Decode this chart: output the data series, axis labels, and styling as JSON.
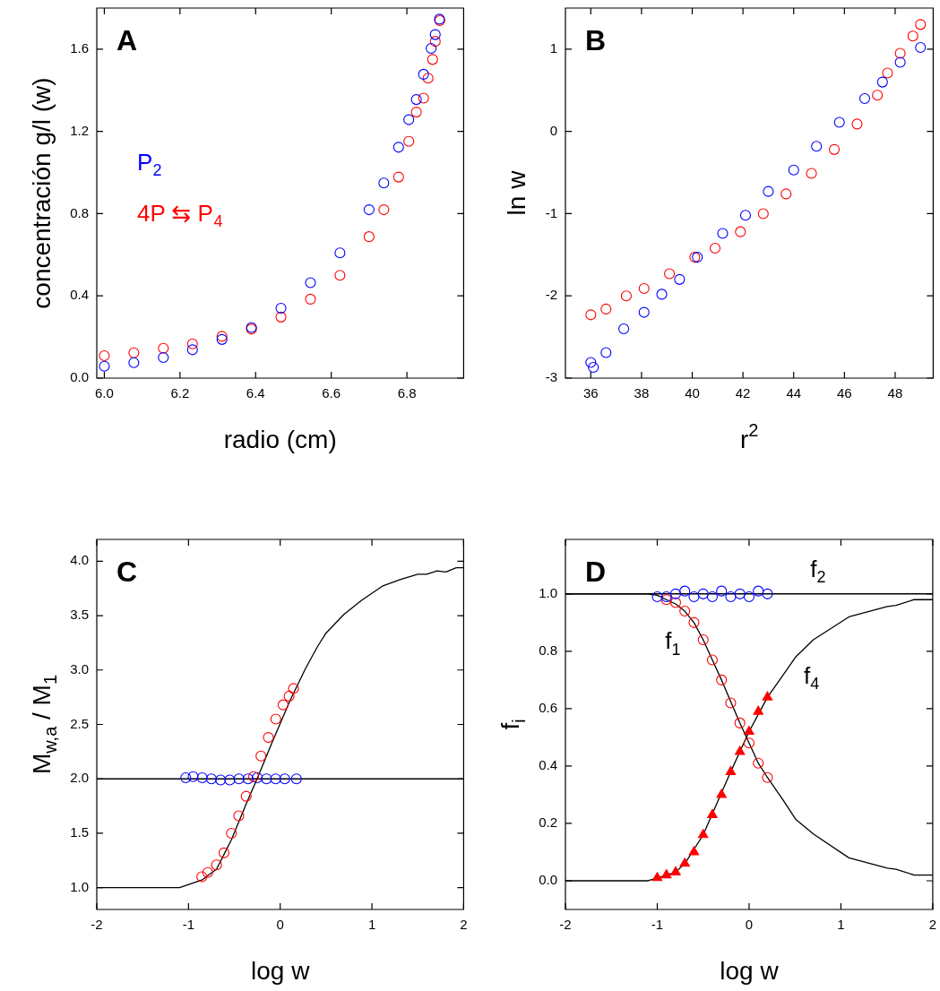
{
  "chart_data": [
    {
      "type": "scatter",
      "xlabel": "radio (cm)",
      "ylabel": "concentración g/l (w)",
      "annotations": [
        "A"
      ],
      "xlim": [
        5.98,
        6.95
      ],
      "xticks": [
        {
          "value": 6,
          "label": "6.0"
        },
        6.2,
        6.4,
        6.6,
        6.8
      ],
      "ylim": [
        0,
        1.8
      ],
      "yticks": [
        {
          "value": 0,
          "label": "0.0"
        },
        0.4,
        0.8,
        1.2,
        1.6
      ],
      "legend": "left",
      "marker": "circle",
      "series": [
        {
          "name": "P$_{2}$",
          "color": "#0000ff",
          "x": [
            6.0,
            6.078,
            6.156,
            6.233,
            6.311,
            6.389,
            6.467,
            6.545,
            6.623,
            6.7,
            6.739,
            6.778,
            6.805,
            6.825,
            6.844,
            6.864,
            6.875,
            6.886
          ],
          "values": [
            0.058,
            0.075,
            0.1,
            0.138,
            0.188,
            0.246,
            0.34,
            0.464,
            0.609,
            0.819,
            0.949,
            1.123,
            1.257,
            1.355,
            1.478,
            1.604,
            1.671,
            1.746
          ]
        },
        {
          "name": "4P ⇆ P$_{4}$",
          "color": "#ff0000",
          "x": [
            6.0,
            6.078,
            6.156,
            6.233,
            6.311,
            6.389,
            6.467,
            6.545,
            6.623,
            6.7,
            6.739,
            6.778,
            6.805,
            6.825,
            6.844,
            6.856,
            6.868,
            6.875,
            6.887
          ],
          "values": [
            0.109,
            0.123,
            0.145,
            0.167,
            0.203,
            0.239,
            0.297,
            0.384,
            0.5,
            0.688,
            0.819,
            0.978,
            1.152,
            1.294,
            1.362,
            1.459,
            1.55,
            1.638,
            1.739
          ]
        }
      ]
    },
    {
      "type": "scatter",
      "xlabel": "r$^{2}$",
      "ylabel": "ln w",
      "annotations": [
        "B"
      ],
      "xlim": [
        35,
        49.5
      ],
      "xticks": [
        36,
        38,
        40,
        42,
        44,
        46,
        48
      ],
      "ylim": [
        -3,
        1.5
      ],
      "yticks": [
        -3,
        -2,
        -1,
        0,
        1
      ],
      "marker": "circle",
      "series": [
        {
          "color": "#0000ff",
          "x": [
            36.0,
            36.1,
            36.6,
            37.3,
            38.1,
            38.8,
            39.5,
            40.2,
            41.2,
            42.1,
            43.0,
            44.0,
            44.9,
            45.8,
            46.8,
            47.5,
            48.2,
            49.0
          ],
          "values": [
            -2.81,
            -2.87,
            -2.69,
            -2.4,
            -2.2,
            -1.98,
            -1.8,
            -1.53,
            -1.24,
            -1.02,
            -0.73,
            -0.47,
            -0.18,
            0.11,
            0.4,
            0.6,
            0.84,
            1.02
          ]
        },
        {
          "color": "#ff0000",
          "x": [
            36.0,
            36.6,
            37.4,
            38.1,
            39.1,
            40.1,
            40.9,
            41.9,
            42.8,
            43.7,
            44.7,
            45.6,
            46.5,
            47.3,
            47.7,
            48.2,
            48.7,
            49.0
          ],
          "values": [
            -2.23,
            -2.16,
            -2.0,
            -1.91,
            -1.73,
            -1.53,
            -1.42,
            -1.22,
            -1.0,
            -0.76,
            -0.51,
            -0.22,
            0.09,
            0.44,
            0.71,
            0.95,
            1.16,
            1.3
          ]
        }
      ]
    },
    {
      "type": "scatter",
      "xlabel": "log w",
      "ylabel": "M$_{w,a}$ / M$_{1}$",
      "annotations": [
        "C"
      ],
      "xlim": [
        -2,
        2
      ],
      "xticks": [
        -2,
        -1,
        0,
        1,
        2
      ],
      "ylim": [
        0.8,
        4.2
      ],
      "yticks": [
        {
          "value": 1,
          "label": "1.0"
        },
        1.5,
        {
          "value": 2,
          "label": "2.0"
        },
        2.5,
        {
          "value": 3,
          "label": "3.0"
        },
        3.5,
        {
          "value": 4,
          "label": "4.0"
        }
      ],
      "marker": "circle",
      "ref_lines": [
        {
          "axis": "y",
          "value": 2,
          "color": "#000000"
        }
      ],
      "series": [
        {
          "color": "#ff0000",
          "x": [
            -0.855,
            -0.79,
            -0.694,
            -0.613,
            -0.532,
            -0.452,
            -0.371,
            -0.29,
            -0.21,
            -0.129,
            -0.048,
            0.032,
            0.097,
            0.145
          ],
          "values": [
            1.1,
            1.14,
            1.21,
            1.32,
            1.5,
            1.66,
            1.84,
            2.02,
            2.21,
            2.38,
            2.55,
            2.68,
            2.76,
            2.83
          ]
        },
        {
          "color": "#0000ff",
          "x": [
            -1.03,
            -0.95,
            -0.85,
            -0.75,
            -0.65,
            -0.55,
            -0.45,
            -0.35,
            -0.25,
            -0.15,
            -0.05,
            0.05,
            0.177
          ],
          "values": [
            2.01,
            2.02,
            2.01,
            2.0,
            1.99,
            1.99,
            2.0,
            2.0,
            2.01,
            2.0,
            2.0,
            2.0,
            2.0
          ]
        },
        {
          "type": "line",
          "marker": "none",
          "color": "#000000",
          "x": [
            -2,
            -1.097,
            -0.855,
            -0.694,
            -0.532,
            -0.371,
            -0.242,
            -0.081,
            0.113,
            0.274,
            0.403,
            0.5,
            0.694,
            0.887,
            1.113,
            1.306,
            1.5,
            1.597,
            1.71,
            1.806,
            1.919,
            2.0
          ],
          "values": [
            1.0,
            1.0,
            1.07,
            1.17,
            1.44,
            1.77,
            2.02,
            2.35,
            2.73,
            3.01,
            3.21,
            3.34,
            3.51,
            3.64,
            3.77,
            3.83,
            3.88,
            3.88,
            3.91,
            3.9,
            3.94,
            3.94
          ]
        }
      ]
    },
    {
      "type": "scatter",
      "xlabel": "log w",
      "ylabel": "f$_{i}$",
      "annotations": [
        "D",
        "f$_{2}$",
        "f$_{1}$",
        "f$_{4}$"
      ],
      "xlim": [
        -2,
        2
      ],
      "xticks": [
        -2,
        -1,
        0,
        1,
        2
      ],
      "ylim": [
        -0.1,
        1.19
      ],
      "yticks": [
        {
          "value": 0,
          "label": "0.0"
        },
        0.2,
        0.4,
        0.6,
        0.8,
        {
          "value": 1,
          "label": "1.0"
        }
      ],
      "marker": "circle",
      "ref_lines": [
        {
          "axis": "y",
          "value": 1,
          "color": "#000000"
        }
      ],
      "series": [
        {
          "color": "#0000ff",
          "x": [
            -1.0,
            -0.9,
            -0.8,
            -0.7,
            -0.6,
            -0.5,
            -0.4,
            -0.3,
            -0.2,
            -0.1,
            0.0,
            0.1,
            0.2
          ],
          "values": [
            0.99,
            0.99,
            1.0,
            1.01,
            0.99,
            1.0,
            0.99,
            1.01,
            0.99,
            1.0,
            0.99,
            1.01,
            1.0
          ]
        },
        {
          "color": "#ff0000",
          "x": [
            -0.9,
            -0.8,
            -0.7,
            -0.6,
            -0.5,
            -0.4,
            -0.3,
            -0.2,
            -0.1,
            0.0,
            0.1,
            0.2
          ],
          "values": [
            0.98,
            0.97,
            0.94,
            0.9,
            0.84,
            0.77,
            0.7,
            0.62,
            0.55,
            0.48,
            0.41,
            0.36
          ]
        },
        {
          "color": "#ff0000",
          "marker": "triangle",
          "x": [
            -1.0,
            -0.9,
            -0.8,
            -0.7,
            -0.6,
            -0.5,
            -0.4,
            -0.3,
            -0.2,
            -0.1,
            0.0,
            0.1,
            0.2
          ],
          "values": [
            0.01,
            0.02,
            0.03,
            0.06,
            0.1,
            0.16,
            0.23,
            0.3,
            0.38,
            0.45,
            0.52,
            0.59,
            0.64
          ]
        },
        {
          "type": "line",
          "marker": "none",
          "color": "#000000",
          "x": [
            -2,
            -1.1,
            -1.0,
            -0.9,
            -0.8,
            -0.7,
            -0.6,
            -0.5,
            -0.4,
            -0.3,
            -0.2,
            -0.1,
            0.0,
            0.1,
            0.2,
            0.377,
            0.506,
            0.7,
            1.087,
            1.506,
            1.6,
            1.797,
            2.0
          ],
          "values": [
            1.0,
            1.0,
            0.995,
            0.98,
            0.965,
            0.94,
            0.9,
            0.84,
            0.77,
            0.7,
            0.625,
            0.55,
            0.48,
            0.41,
            0.36,
            0.278,
            0.215,
            0.163,
            0.08,
            0.044,
            0.04,
            0.02,
            0.02
          ]
        },
        {
          "type": "line",
          "marker": "none",
          "color": "#000000",
          "x": [
            -2,
            -1.1,
            -1.0,
            -0.9,
            -0.8,
            -0.7,
            -0.5,
            -0.2,
            0.0,
            0.2,
            0.377,
            0.506,
            0.7,
            1.087,
            1.506,
            1.6,
            1.797,
            2.0
          ],
          "values": [
            0.0,
            0.0,
            0.01,
            0.02,
            0.03,
            0.06,
            0.16,
            0.38,
            0.52,
            0.64,
            0.72,
            0.78,
            0.84,
            0.92,
            0.956,
            0.96,
            0.98,
            0.98
          ]
        }
      ]
    }
  ]
}
